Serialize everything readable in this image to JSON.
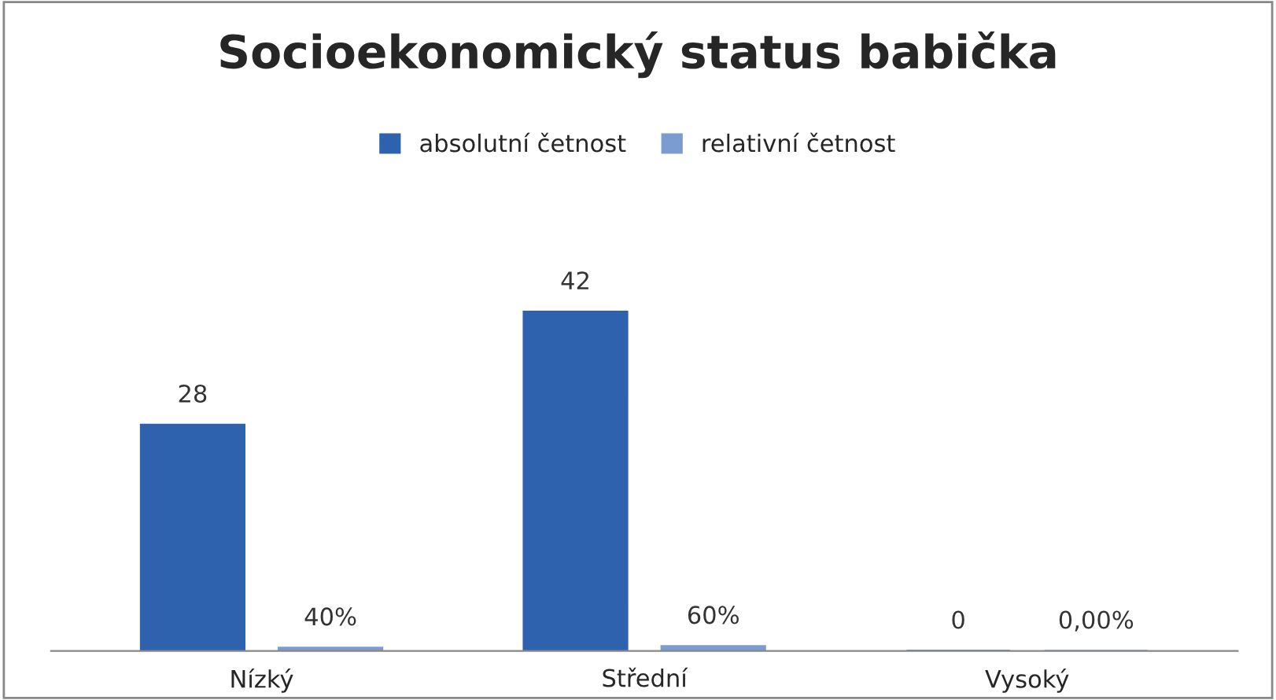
{
  "chart_data": {
    "type": "bar",
    "title": "Socioekonomický status babička",
    "categories": [
      "Nízký",
      "Střední",
      "Vysoký"
    ],
    "series": [
      {
        "name": "absolutní četnost",
        "color": "#2f62ae",
        "values": [
          28,
          42,
          0
        ],
        "value_labels": [
          "28",
          "42",
          "0"
        ]
      },
      {
        "name": "relativní četnost",
        "color": "#7a9cd0",
        "values": [
          0.4,
          0.6,
          0
        ],
        "value_labels": [
          "40%",
          "60%",
          "0,00%"
        ]
      }
    ],
    "legend": "top",
    "grid": false
  }
}
